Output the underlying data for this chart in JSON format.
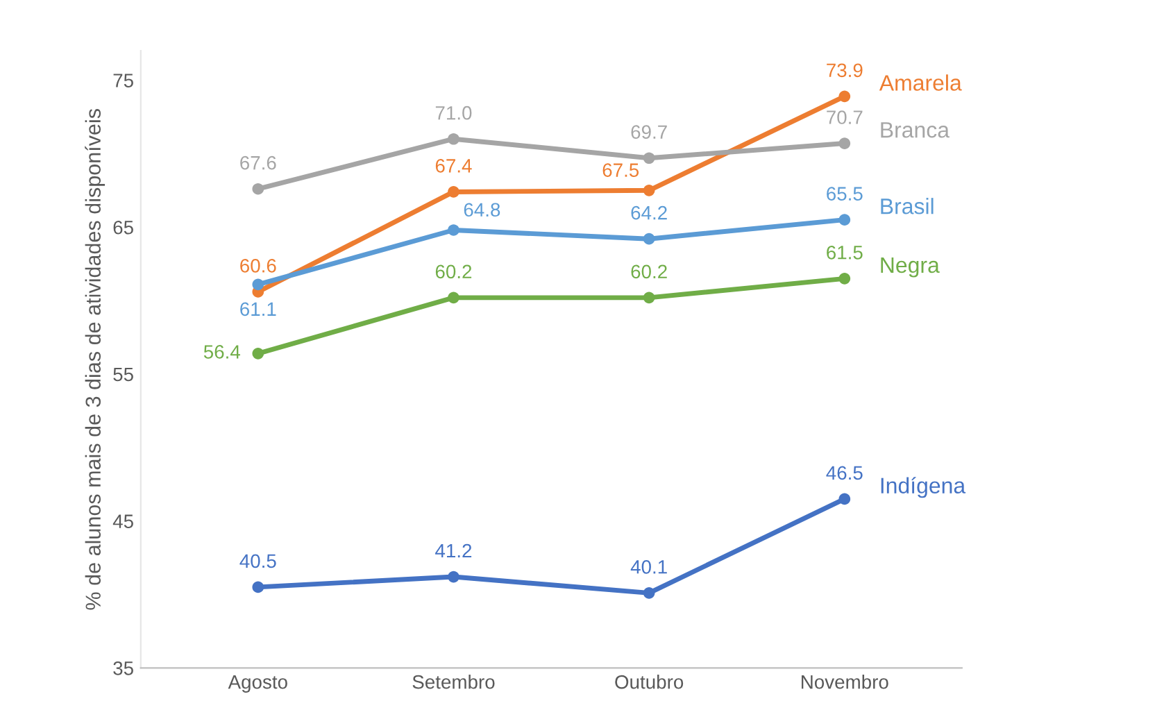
{
  "chart_data": {
    "type": "line",
    "ylabel": "% de alunos mais de 3 dias de atividades disponíveis",
    "categories": [
      "Agosto",
      "Setembro",
      "Outubro",
      "Novembro"
    ],
    "series": [
      {
        "name": "Amarela",
        "color": "#ed7d31",
        "values": [
          60.6,
          67.4,
          67.5,
          73.9
        ],
        "value_labels": [
          "60.6",
          "67.4",
          "67.5",
          "73.9"
        ]
      },
      {
        "name": "Branca",
        "color": "#a5a5a5",
        "values": [
          67.6,
          71.0,
          69.7,
          70.7
        ],
        "value_labels": [
          "67.6",
          "71.0",
          "69.7",
          "70.7"
        ]
      },
      {
        "name": "Brasil",
        "color": "#5b9bd5",
        "values": [
          61.1,
          64.8,
          64.2,
          65.5
        ],
        "value_labels": [
          "61.1",
          "64.8",
          "64.2",
          "65.5"
        ]
      },
      {
        "name": "Negra",
        "color": "#70ad47",
        "values": [
          56.4,
          60.2,
          60.2,
          61.5
        ],
        "value_labels": [
          "56.4",
          "60.2",
          "60.2",
          "61.5"
        ]
      },
      {
        "name": "Indígena",
        "color": "#4472c4",
        "values": [
          40.5,
          41.2,
          40.1,
          46.5
        ],
        "value_labels": [
          "40.5",
          "41.2",
          "40.1",
          "46.5"
        ]
      }
    ],
    "ylim": [
      35,
      77
    ],
    "yticks": [
      35,
      45,
      55,
      65,
      75
    ],
    "marker": "circle",
    "line_style": "solid",
    "grid": false,
    "legend": false
  }
}
